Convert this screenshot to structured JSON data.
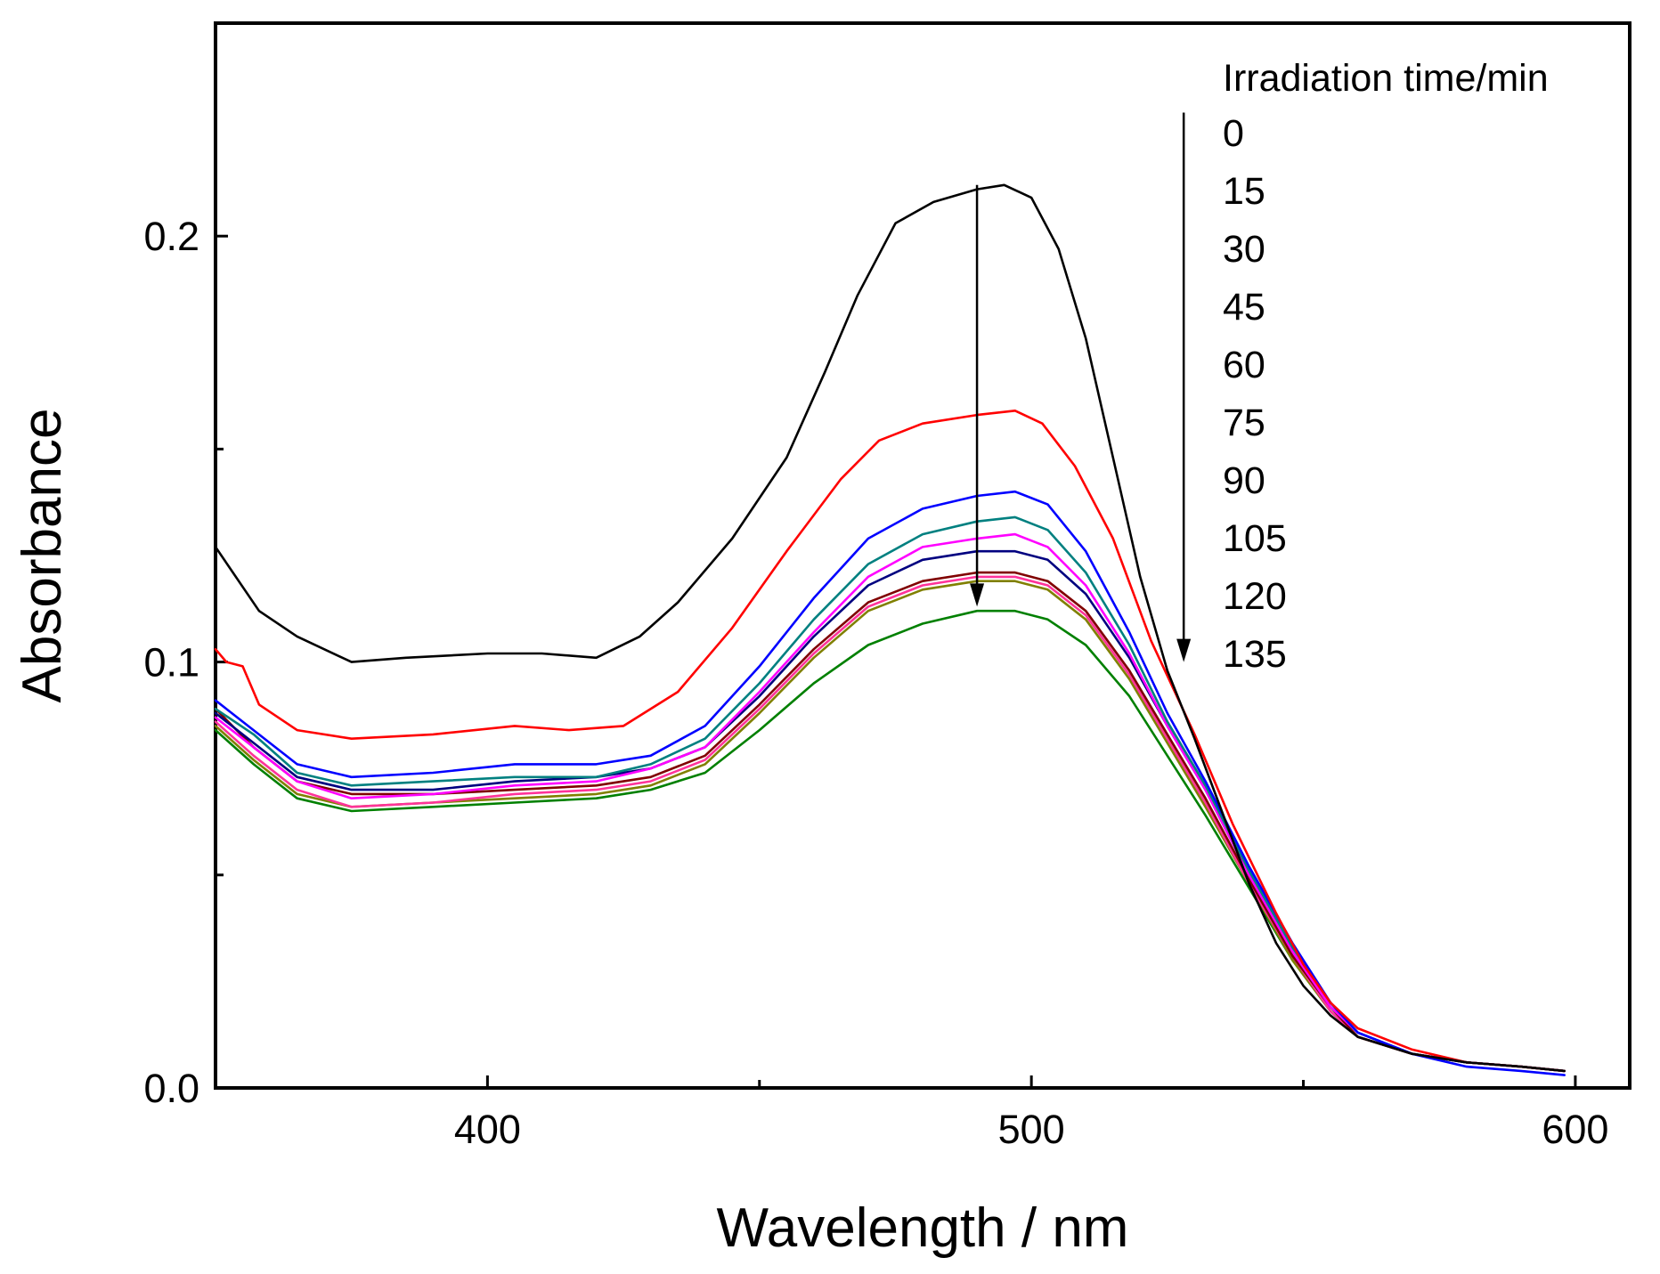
{
  "chart_data": {
    "type": "line",
    "title": "",
    "xlabel": "Wavelength / nm",
    "ylabel": "Absorbance",
    "xlim": [
      350,
      610
    ],
    "ylim": [
      0.0,
      0.25
    ],
    "x_ticks": [
      400,
      500,
      600
    ],
    "x_tick_labels": [
      "400",
      "500",
      "600"
    ],
    "x_minor_ticks": [
      450,
      550
    ],
    "y_ticks": [
      0.0,
      0.1,
      0.2
    ],
    "y_tick_labels": [
      "0.0",
      "0.1",
      "0.2"
    ],
    "y_minor_ticks": [
      0.05,
      0.15
    ],
    "grid": false,
    "legend_title": "Irradiation time/min",
    "legend_placement": "top-right",
    "annotations": [
      {
        "type": "arrow",
        "x": 490,
        "y_from": 0.212,
        "y_to": 0.113
      },
      {
        "type": "arrow",
        "x": 528,
        "y_from": 0.229,
        "y_to": 0.1
      }
    ],
    "series": [
      {
        "name": "0",
        "color": "#000000",
        "points": [
          [
            350,
            0.127
          ],
          [
            358,
            0.112
          ],
          [
            365,
            0.106
          ],
          [
            375,
            0.1
          ],
          [
            385,
            0.101
          ],
          [
            400,
            0.102
          ],
          [
            410,
            0.102
          ],
          [
            420,
            0.101
          ],
          [
            428,
            0.106
          ],
          [
            435,
            0.114
          ],
          [
            445,
            0.129
          ],
          [
            455,
            0.148
          ],
          [
            462,
            0.168
          ],
          [
            468,
            0.186
          ],
          [
            475,
            0.203
          ],
          [
            482,
            0.208
          ],
          [
            490,
            0.211
          ],
          [
            495,
            0.212
          ],
          [
            500,
            0.209
          ],
          [
            505,
            0.197
          ],
          [
            510,
            0.176
          ],
          [
            515,
            0.148
          ],
          [
            520,
            0.12
          ],
          [
            525,
            0.098
          ],
          [
            530,
            0.082
          ],
          [
            535,
            0.065
          ],
          [
            540,
            0.048
          ],
          [
            545,
            0.034
          ],
          [
            550,
            0.024
          ],
          [
            555,
            0.017
          ],
          [
            560,
            0.012
          ],
          [
            570,
            0.008
          ],
          [
            580,
            0.006
          ],
          [
            590,
            0.005
          ],
          [
            598,
            0.004
          ]
        ]
      },
      {
        "name": "15",
        "color": "#ff0000",
        "points": [
          [
            350,
            0.103
          ],
          [
            352,
            0.1
          ],
          [
            355,
            0.099
          ],
          [
            358,
            0.09
          ],
          [
            365,
            0.084
          ],
          [
            375,
            0.082
          ],
          [
            390,
            0.083
          ],
          [
            405,
            0.085
          ],
          [
            415,
            0.084
          ],
          [
            425,
            0.085
          ],
          [
            435,
            0.093
          ],
          [
            445,
            0.108
          ],
          [
            455,
            0.126
          ],
          [
            465,
            0.143
          ],
          [
            472,
            0.152
          ],
          [
            480,
            0.156
          ],
          [
            490,
            0.158
          ],
          [
            497,
            0.159
          ],
          [
            502,
            0.156
          ],
          [
            508,
            0.146
          ],
          [
            515,
            0.129
          ],
          [
            522,
            0.105
          ],
          [
            530,
            0.083
          ],
          [
            537,
            0.062
          ],
          [
            545,
            0.041
          ],
          [
            550,
            0.029
          ],
          [
            555,
            0.02
          ],
          [
            560,
            0.014
          ],
          [
            570,
            0.009
          ],
          [
            580,
            0.006
          ],
          [
            590,
            0.005
          ],
          [
            598,
            0.004
          ]
        ]
      },
      {
        "name": "30",
        "color": "#0000ff",
        "points": [
          [
            350,
            0.091
          ],
          [
            356,
            0.085
          ],
          [
            365,
            0.076
          ],
          [
            375,
            0.073
          ],
          [
            390,
            0.074
          ],
          [
            405,
            0.076
          ],
          [
            420,
            0.076
          ],
          [
            430,
            0.078
          ],
          [
            440,
            0.085
          ],
          [
            450,
            0.099
          ],
          [
            460,
            0.115
          ],
          [
            470,
            0.129
          ],
          [
            480,
            0.136
          ],
          [
            490,
            0.139
          ],
          [
            497,
            0.14
          ],
          [
            503,
            0.137
          ],
          [
            510,
            0.126
          ],
          [
            518,
            0.107
          ],
          [
            525,
            0.088
          ],
          [
            532,
            0.072
          ],
          [
            540,
            0.052
          ],
          [
            548,
            0.034
          ],
          [
            555,
            0.02
          ],
          [
            560,
            0.013
          ],
          [
            570,
            0.008
          ],
          [
            580,
            0.005
          ],
          [
            590,
            0.004
          ],
          [
            598,
            0.003
          ]
        ]
      },
      {
        "name": "45",
        "color": "#008080",
        "points": [
          [
            350,
            0.089
          ],
          [
            357,
            0.083
          ],
          [
            365,
            0.074
          ],
          [
            375,
            0.071
          ],
          [
            390,
            0.072
          ],
          [
            405,
            0.073
          ],
          [
            420,
            0.073
          ],
          [
            430,
            0.076
          ],
          [
            440,
            0.082
          ],
          [
            450,
            0.095
          ],
          [
            460,
            0.11
          ],
          [
            470,
            0.123
          ],
          [
            480,
            0.13
          ],
          [
            490,
            0.133
          ],
          [
            497,
            0.134
          ],
          [
            503,
            0.131
          ],
          [
            510,
            0.121
          ],
          [
            518,
            0.104
          ],
          [
            525,
            0.086
          ],
          [
            532,
            0.071
          ],
          [
            540,
            0.051
          ],
          [
            548,
            0.033
          ],
          [
            555,
            0.02
          ],
          [
            560,
            0.013
          ],
          [
            570,
            0.008
          ],
          [
            580,
            0.006
          ],
          [
            590,
            0.005
          ],
          [
            598,
            0.004
          ]
        ]
      },
      {
        "name": "60",
        "color": "#ff00ff",
        "points": [
          [
            350,
            0.087
          ],
          [
            357,
            0.08
          ],
          [
            365,
            0.072
          ],
          [
            375,
            0.068
          ],
          [
            390,
            0.069
          ],
          [
            405,
            0.071
          ],
          [
            420,
            0.072
          ],
          [
            430,
            0.075
          ],
          [
            440,
            0.08
          ],
          [
            450,
            0.093
          ],
          [
            460,
            0.107
          ],
          [
            470,
            0.12
          ],
          [
            480,
            0.127
          ],
          [
            490,
            0.129
          ],
          [
            497,
            0.13
          ],
          [
            503,
            0.127
          ],
          [
            510,
            0.118
          ],
          [
            518,
            0.102
          ],
          [
            525,
            0.085
          ],
          [
            532,
            0.07
          ],
          [
            540,
            0.05
          ],
          [
            548,
            0.032
          ],
          [
            555,
            0.019
          ],
          [
            560,
            0.013
          ],
          [
            570,
            0.008
          ],
          [
            580,
            0.006
          ],
          [
            590,
            0.005
          ],
          [
            598,
            0.004
          ]
        ]
      },
      {
        "name": "75",
        "color": "#000080",
        "points": [
          [
            350,
            0.088
          ],
          [
            357,
            0.081
          ],
          [
            365,
            0.073
          ],
          [
            375,
            0.07
          ],
          [
            390,
            0.07
          ],
          [
            405,
            0.072
          ],
          [
            420,
            0.073
          ],
          [
            430,
            0.075
          ],
          [
            440,
            0.08
          ],
          [
            450,
            0.092
          ],
          [
            460,
            0.106
          ],
          [
            470,
            0.118
          ],
          [
            480,
            0.124
          ],
          [
            490,
            0.126
          ],
          [
            497,
            0.126
          ],
          [
            503,
            0.124
          ],
          [
            510,
            0.116
          ],
          [
            518,
            0.101
          ],
          [
            525,
            0.085
          ],
          [
            532,
            0.07
          ],
          [
            540,
            0.05
          ],
          [
            548,
            0.032
          ],
          [
            555,
            0.019
          ],
          [
            560,
            0.013
          ],
          [
            570,
            0.008
          ],
          [
            580,
            0.006
          ],
          [
            590,
            0.005
          ],
          [
            598,
            0.004
          ]
        ]
      },
      {
        "name": "90",
        "color": "#800000",
        "points": [
          [
            350,
            0.089
          ],
          [
            357,
            0.08
          ],
          [
            365,
            0.072
          ],
          [
            375,
            0.069
          ],
          [
            390,
            0.069
          ],
          [
            405,
            0.07
          ],
          [
            420,
            0.071
          ],
          [
            430,
            0.073
          ],
          [
            440,
            0.078
          ],
          [
            450,
            0.09
          ],
          [
            460,
            0.103
          ],
          [
            470,
            0.114
          ],
          [
            480,
            0.119
          ],
          [
            490,
            0.121
          ],
          [
            497,
            0.121
          ],
          [
            503,
            0.119
          ],
          [
            510,
            0.112
          ],
          [
            518,
            0.098
          ],
          [
            525,
            0.083
          ],
          [
            532,
            0.068
          ],
          [
            540,
            0.049
          ],
          [
            548,
            0.031
          ],
          [
            555,
            0.019
          ],
          [
            560,
            0.012
          ],
          [
            570,
            0.008
          ],
          [
            580,
            0.006
          ],
          [
            590,
            0.005
          ],
          [
            598,
            0.004
          ]
        ]
      },
      {
        "name": "105",
        "color": "#ff3399",
        "points": [
          [
            350,
            0.086
          ],
          [
            357,
            0.078
          ],
          [
            365,
            0.07
          ],
          [
            375,
            0.066
          ],
          [
            390,
            0.067
          ],
          [
            405,
            0.069
          ],
          [
            420,
            0.07
          ],
          [
            430,
            0.072
          ],
          [
            440,
            0.077
          ],
          [
            450,
            0.089
          ],
          [
            460,
            0.102
          ],
          [
            470,
            0.113
          ],
          [
            480,
            0.118
          ],
          [
            490,
            0.12
          ],
          [
            497,
            0.12
          ],
          [
            503,
            0.118
          ],
          [
            510,
            0.111
          ],
          [
            518,
            0.097
          ],
          [
            525,
            0.082
          ],
          [
            532,
            0.067
          ],
          [
            540,
            0.048
          ],
          [
            548,
            0.031
          ],
          [
            555,
            0.018
          ],
          [
            560,
            0.012
          ],
          [
            570,
            0.008
          ],
          [
            580,
            0.006
          ],
          [
            590,
            0.005
          ],
          [
            598,
            0.004
          ]
        ]
      },
      {
        "name": "120",
        "color": "#808000",
        "points": [
          [
            350,
            0.085
          ],
          [
            357,
            0.077
          ],
          [
            365,
            0.069
          ],
          [
            375,
            0.066
          ],
          [
            390,
            0.067
          ],
          [
            405,
            0.068
          ],
          [
            420,
            0.069
          ],
          [
            430,
            0.071
          ],
          [
            440,
            0.076
          ],
          [
            450,
            0.088
          ],
          [
            460,
            0.101
          ],
          [
            470,
            0.112
          ],
          [
            480,
            0.117
          ],
          [
            490,
            0.119
          ],
          [
            497,
            0.119
          ],
          [
            503,
            0.117
          ],
          [
            510,
            0.11
          ],
          [
            518,
            0.096
          ],
          [
            525,
            0.081
          ],
          [
            532,
            0.066
          ],
          [
            540,
            0.048
          ],
          [
            548,
            0.03
          ],
          [
            555,
            0.018
          ],
          [
            560,
            0.012
          ],
          [
            570,
            0.008
          ],
          [
            580,
            0.006
          ],
          [
            590,
            0.005
          ],
          [
            598,
            0.004
          ]
        ]
      },
      {
        "name": "135",
        "color": "#008000",
        "points": [
          [
            350,
            0.084
          ],
          [
            357,
            0.076
          ],
          [
            365,
            0.068
          ],
          [
            375,
            0.065
          ],
          [
            390,
            0.066
          ],
          [
            405,
            0.067
          ],
          [
            420,
            0.068
          ],
          [
            430,
            0.07
          ],
          [
            440,
            0.074
          ],
          [
            450,
            0.084
          ],
          [
            460,
            0.095
          ],
          [
            470,
            0.104
          ],
          [
            480,
            0.109
          ],
          [
            490,
            0.112
          ],
          [
            497,
            0.112
          ],
          [
            503,
            0.11
          ],
          [
            510,
            0.104
          ],
          [
            518,
            0.092
          ],
          [
            525,
            0.078
          ],
          [
            532,
            0.064
          ],
          [
            540,
            0.047
          ],
          [
            548,
            0.03
          ],
          [
            555,
            0.018
          ],
          [
            560,
            0.012
          ],
          [
            570,
            0.008
          ],
          [
            580,
            0.006
          ],
          [
            590,
            0.005
          ],
          [
            598,
            0.004
          ]
        ]
      }
    ]
  }
}
